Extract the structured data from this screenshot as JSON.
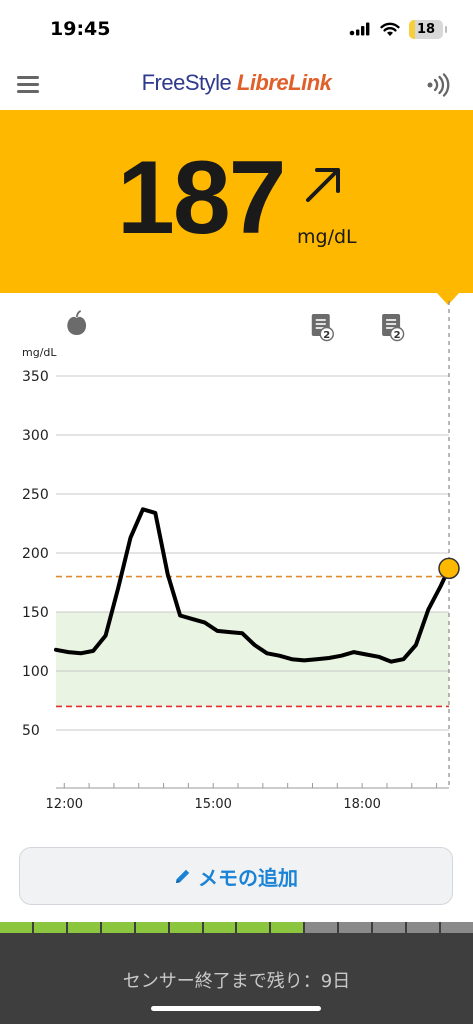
{
  "status_bar": {
    "time": "19:45",
    "battery": "18",
    "battery_level": 0.18
  },
  "header": {
    "brand_part1": "FreeStyle ",
    "brand_part2": "LibreLink"
  },
  "reading": {
    "value": "187",
    "unit": "mg/dL",
    "trend": "rising"
  },
  "colors": {
    "reading_bg": "#ffb800",
    "target_band": "#eaf4e2",
    "high_line": "#e0892e",
    "low_line": "#e0302e",
    "line": "#000000",
    "current_point": "#ffb800",
    "sensor_green": "#8cc63f",
    "sensor_gray": "#8a8a8a",
    "memo_text": "#1a83d6"
  },
  "icons": {
    "menu": "hamburger-icon",
    "nfc": "nfc-scan-icon",
    "trend": "arrow-up-right-icon",
    "food": "apple-icon",
    "note": "note-icon",
    "memo": "pencil-icon"
  },
  "chart_data": {
    "type": "line",
    "ylabel": "mg/dL",
    "yticks": [
      50,
      100,
      150,
      200,
      250,
      300,
      350
    ],
    "ylim": [
      0,
      350
    ],
    "xticks": [
      "12:00",
      "15:00",
      "18:00"
    ],
    "xlim": [
      "11:50",
      "19:45"
    ],
    "target_range": [
      70,
      150
    ],
    "high_threshold": 180,
    "low_threshold": 70,
    "series": [
      {
        "x": [
          "11:50",
          "12:05",
          "12:20",
          "12:35",
          "12:50",
          "13:05",
          "13:20",
          "13:35",
          "13:50",
          "14:05",
          "14:20",
          "14:35",
          "14:50",
          "15:05",
          "15:20",
          "15:35",
          "15:50",
          "16:05",
          "16:20",
          "16:35",
          "16:50",
          "17:05",
          "17:20",
          "17:35",
          "17:50",
          "18:05",
          "18:20",
          "18:35",
          "18:50",
          "19:05",
          "19:20",
          "19:35",
          "19:45"
        ],
        "y": [
          118,
          116,
          115,
          117,
          130,
          170,
          213,
          237,
          234,
          182,
          147,
          144,
          141,
          134,
          133,
          132,
          122,
          115,
          113,
          110,
          109,
          110,
          111,
          113,
          116,
          114,
          112,
          108,
          110,
          122,
          152,
          172,
          187
        ]
      }
    ],
    "current": {
      "time": "19:45",
      "value": 187
    },
    "events": [
      {
        "time": "12:15",
        "type": "food",
        "icon": "apple-icon"
      },
      {
        "time": "17:10",
        "type": "note",
        "icon": "note-icon",
        "count": "2"
      },
      {
        "time": "18:35",
        "type": "note",
        "icon": "note-icon",
        "count": "2"
      }
    ]
  },
  "memo_button": {
    "label": "メモの追加"
  },
  "sensor": {
    "text": "センサー終了まで残り：9日",
    "segments_total": 14,
    "segments_used": 9
  }
}
